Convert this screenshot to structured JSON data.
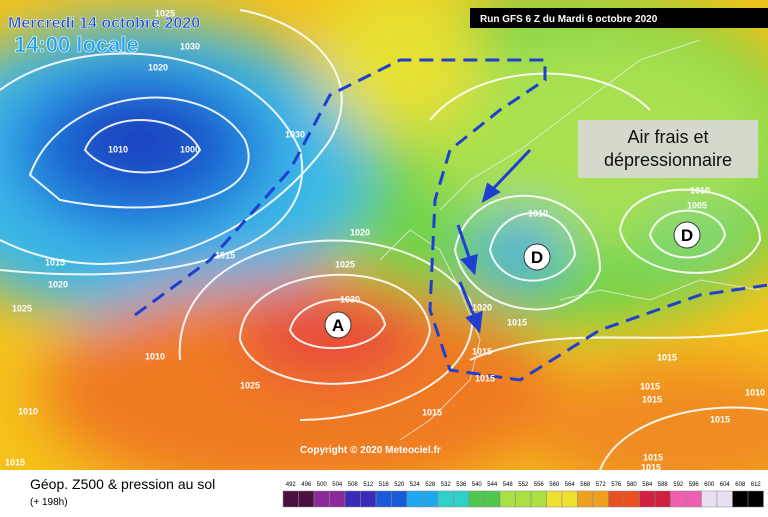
{
  "header": {
    "date": "Mercredi 14 octobre 2020",
    "time": "14:00 locale",
    "run": "Run GFS 6 Z du Mardi 6 octobre 2020"
  },
  "annotation": [
    "Air frais et",
    "dépressionnaire"
  ],
  "centers": [
    "A",
    "D",
    "D"
  ],
  "isobars": [
    1025,
    1030,
    1020,
    1010,
    1000,
    1030,
    1015,
    1020,
    1025,
    1015,
    1020,
    1025,
    1030,
    1010,
    1025,
    1010,
    1020,
    1015,
    1015,
    1015,
    1015,
    1010,
    1010,
    1005,
    1015,
    1015,
    1015,
    1015,
    1010,
    1015,
    1015,
    1015
  ],
  "copyright": "Copyright © 2020 Meteociel.fr",
  "legend": {
    "title": "Géop. Z500 & pression au sol",
    "subtitle": "(+ 198h)",
    "scale": [
      492,
      496,
      500,
      504,
      508,
      512,
      516,
      520,
      524,
      528,
      532,
      536,
      540,
      544,
      548,
      552,
      556,
      560,
      564,
      568,
      572,
      576,
      580,
      584,
      588,
      592,
      596,
      600,
      604,
      608,
      612
    ]
  }
}
